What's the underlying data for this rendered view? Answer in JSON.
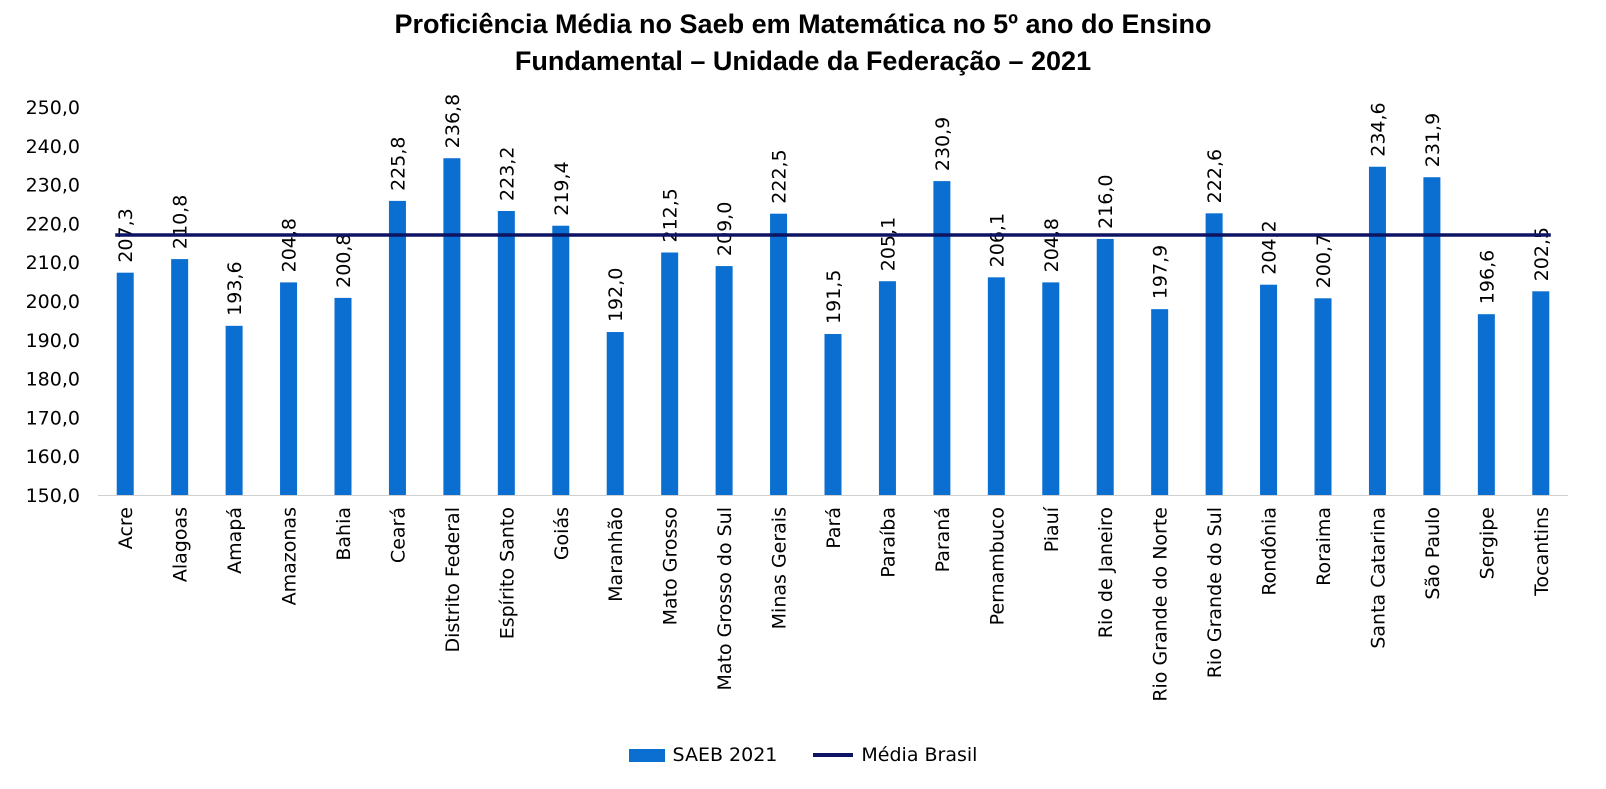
{
  "chart_data": {
    "type": "bar",
    "title_line1": "Proficiência Média no Saeb em Matemática no 5º ano do Ensino",
    "title_line2": "Fundamental – Unidade da Federação – 2021",
    "categories": [
      "Acre",
      "Alagoas",
      "Amapá",
      "Amazonas",
      "Bahia",
      "Ceará",
      "Distrito Federal",
      "Espírito Santo",
      "Goiás",
      "Maranhão",
      "Mato Grosso",
      "Mato Grosso do Sul",
      "Minas Gerais",
      "Pará",
      "Paraíba",
      "Paraná",
      "Pernambuco",
      "Piauí",
      "Rio de Janeiro",
      "Rio Grande do Norte",
      "Rio Grande do Sul",
      "Rondônia",
      "Roraima",
      "Santa Catarina",
      "São Paulo",
      "Sergipe",
      "Tocantins"
    ],
    "series": [
      {
        "name": "SAEB 2021",
        "type": "bar",
        "color": "#0a6fd1",
        "values": [
          207.3,
          210.8,
          193.6,
          204.8,
          200.8,
          225.8,
          236.8,
          223.2,
          219.4,
          192.0,
          212.5,
          209.0,
          222.5,
          191.5,
          205.1,
          230.9,
          206.1,
          204.8,
          216.0,
          197.9,
          222.6,
          204.2,
          200.7,
          234.6,
          231.9,
          196.6,
          202.5
        ],
        "labels": [
          "207,3",
          "210,8",
          "193,6",
          "204,8",
          "200,8",
          "225,8",
          "236,8",
          "223,2",
          "219,4",
          "192,0",
          "212,5",
          "209,0",
          "222,5",
          "191,5",
          "205,1",
          "230,9",
          "206,1",
          "204,8",
          "216,0",
          "197,9",
          "222,6",
          "204,2",
          "200,7",
          "234,6",
          "231,9",
          "196,6",
          "202,5"
        ]
      },
      {
        "name": "Média Brasil",
        "type": "line",
        "color": "#0d1463",
        "value": 217
      }
    ],
    "ylim": [
      150,
      250
    ],
    "yticks": [
      "150,0",
      "160,0",
      "170,0",
      "180,0",
      "190,0",
      "200,0",
      "210,0",
      "220,0",
      "230,0",
      "240,0",
      "250,0"
    ],
    "grid": false,
    "legend_position": "bottom"
  }
}
